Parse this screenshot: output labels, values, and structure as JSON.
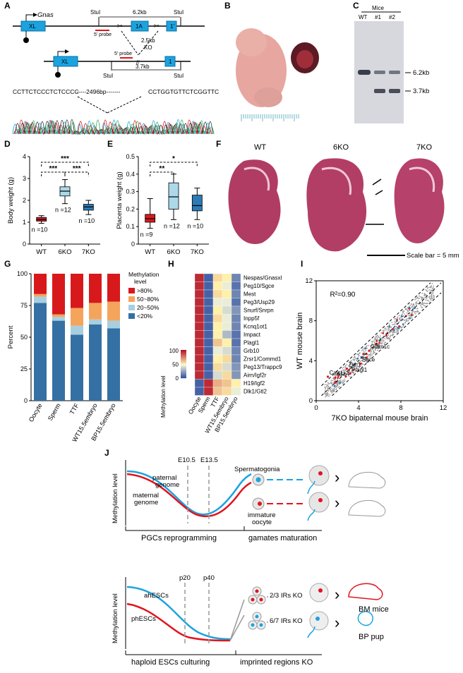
{
  "panel_letters": [
    "A",
    "B",
    "C",
    "D",
    "E",
    "F",
    "G",
    "H",
    "I",
    "J"
  ],
  "panelA": {
    "gene": "Gnas",
    "stul1": "StuI",
    "stul2": "StuI",
    "stul3": "StuI",
    "stul4": "StuI",
    "dist_wt": "6.2kb",
    "dist_ko": "3.7kb",
    "ko_size": "2.5kb",
    "ko_label": "KO",
    "exon_xl": "XL",
    "exon_1a": "1A",
    "exon_1": "1'",
    "exon_1b": "1",
    "probe1": "5' probe",
    "probe2": "5' probe",
    "seq_left": "CCTTCTCCCTCTCCCC",
    "seq_gap": "-----2496bp-------",
    "seq_right": "CCTGGTGTTCTCGGTTC"
  },
  "panelC": {
    "header": "Mice",
    "lanes": [
      "WT",
      "#1",
      "#2"
    ],
    "band_top": "6.2kb",
    "band_bottom": "3.7kb"
  },
  "chart_data": [
    {
      "type": "box",
      "panel": "D",
      "ylabel": "Body weight (g)",
      "ylim": [
        0,
        4
      ],
      "yticks": [
        0,
        1,
        2,
        3,
        4
      ],
      "categories": [
        "WT",
        "6KO",
        "7KO"
      ],
      "colors": [
        "#d7191c",
        "#abd9e9",
        "#2c7bb6"
      ],
      "boxes": [
        {
          "min": 0.95,
          "q1": 1.05,
          "median": 1.12,
          "q3": 1.22,
          "max": 1.3,
          "n": "n =10"
        },
        {
          "min": 1.85,
          "q1": 2.2,
          "median": 2.42,
          "q3": 2.62,
          "max": 2.95,
          "n": "n =12"
        },
        {
          "min": 1.35,
          "q1": 1.55,
          "median": 1.7,
          "q3": 1.82,
          "max": 2.0,
          "n": "n =10"
        }
      ],
      "significance": [
        {
          "pair": [
            "WT",
            "6KO"
          ],
          "label": "***"
        },
        {
          "pair": [
            "6KO",
            "7KO"
          ],
          "label": "***"
        },
        {
          "pair": [
            "WT",
            "7KO"
          ],
          "label": "***"
        }
      ]
    },
    {
      "type": "box",
      "panel": "E",
      "ylabel": "Placenta weight (g)",
      "ylim": [
        0,
        0.5
      ],
      "yticks": [
        0,
        0.1,
        0.2,
        0.3,
        0.4,
        0.5
      ],
      "categories": [
        "WT",
        "6KO",
        "7KO"
      ],
      "colors": [
        "#d7191c",
        "#abd9e9",
        "#2c7bb6"
      ],
      "boxes": [
        {
          "min": 0.09,
          "q1": 0.125,
          "median": 0.145,
          "q3": 0.17,
          "max": 0.26,
          "n": "n =9"
        },
        {
          "min": 0.14,
          "q1": 0.2,
          "median": 0.27,
          "q3": 0.35,
          "max": 0.4,
          "n": "n =12"
        },
        {
          "min": 0.14,
          "q1": 0.19,
          "median": 0.22,
          "q3": 0.28,
          "max": 0.32,
          "n": "n =10"
        }
      ],
      "significance": [
        {
          "pair": [
            "WT",
            "6KO"
          ],
          "label": "**"
        },
        {
          "pair": [
            "WT",
            "7KO"
          ],
          "label": "*"
        }
      ]
    },
    {
      "type": "stacked-bar",
      "panel": "G",
      "ylabel": "Percent",
      "ylim": [
        0,
        100
      ],
      "yticks": [
        0,
        25,
        50,
        75,
        100
      ],
      "categories": [
        "Oocyte",
        "Sperm",
        "TTF",
        "WT15.5embryo",
        "BP15.5embryo"
      ],
      "legend_title": "Methylation level",
      "series": [
        {
          "name": "<20%",
          "color": "#3470a3",
          "values": [
            77,
            63,
            52,
            60,
            57
          ]
        },
        {
          "name": "20~50%",
          "color": "#a7cfe0",
          "values": [
            5,
            3,
            7,
            4,
            6
          ]
        },
        {
          "name": "50~80%",
          "color": "#f4a55b",
          "values": [
            2,
            2,
            14,
            13,
            15
          ]
        },
        {
          "name": ">80%",
          "color": "#d7191c",
          "values": [
            16,
            32,
            27,
            23,
            22
          ]
        }
      ]
    },
    {
      "type": "heatmap",
      "panel": "H",
      "columns": [
        "Oocyte",
        "Sperm",
        "TTF",
        "WT15.5embryo",
        "BP15.5embryo"
      ],
      "rows": [
        "Nespas/Gnasxl",
        "Peg10/Sgce",
        "Mest",
        "Peg3/Usp29",
        "Snurf/Snrpn",
        "Inpp5f",
        "Kcnq1ot1",
        "Impact",
        "Plagl1",
        "Grb10",
        "Zrsr1/Commd1",
        "Peg13/Trappc9",
        "Airn/Igf2r",
        "H19/Igf2",
        "Dlk1/Gtl2"
      ],
      "values": [
        [
          95,
          5,
          55,
          50,
          15
        ],
        [
          95,
          5,
          50,
          45,
          10
        ],
        [
          95,
          5,
          55,
          50,
          15
        ],
        [
          95,
          5,
          45,
          45,
          10
        ],
        [
          95,
          5,
          50,
          40,
          20
        ],
        [
          95,
          5,
          55,
          45,
          15
        ],
        [
          95,
          5,
          50,
          45,
          15
        ],
        [
          95,
          5,
          50,
          30,
          10
        ],
        [
          95,
          5,
          60,
          50,
          10
        ],
        [
          95,
          5,
          45,
          40,
          15
        ],
        [
          95,
          5,
          50,
          55,
          15
        ],
        [
          95,
          5,
          55,
          40,
          20
        ],
        [
          95,
          5,
          40,
          55,
          20
        ],
        [
          5,
          95,
          65,
          60,
          50
        ],
        [
          5,
          95,
          60,
          55,
          45
        ]
      ],
      "scale_label": "Methylation level",
      "scale_ticks": [
        0,
        50,
        100
      ]
    },
    {
      "type": "scatter",
      "panel": "I",
      "xlabel": "7KO bipaternal mouse brain",
      "ylabel": "WT mouse brain",
      "xlim": [
        0,
        12
      ],
      "ylim": [
        0,
        12
      ],
      "ticks": [
        0,
        4,
        8,
        12
      ],
      "annotation": "R²=0.90",
      "labeled_genes": [
        {
          "name": "Calcr",
          "x": 1.1,
          "y": 2.4
        },
        {
          "name": "Asb4",
          "x": 1.8,
          "y": 2.3
        },
        {
          "name": "Zim1",
          "x": 2.9,
          "y": 3.2
        },
        {
          "name": "Cdkn1c",
          "x": 5.0,
          "y": 5.0
        },
        {
          "name": "Sgce",
          "x": 4.2,
          "y": 3.7
        },
        {
          "name": "Plagl1",
          "x": 3.2,
          "y": 2.7
        }
      ]
    }
  ],
  "panelB": {
    "scale_ticks": 28
  },
  "panelF": {
    "labels": [
      "WT",
      "6KO",
      "7KO"
    ],
    "scalebar": "Scale bar = 5 mm"
  },
  "panelJ": {
    "top": {
      "ylabel": "Methylation level",
      "paternal": "paternal genome",
      "paternal_l1": "paternal",
      "paternal_l2": "genome",
      "maternal_l1": "maternal",
      "maternal_l2": "genome",
      "e105": "E10.5",
      "e135": "E13.5",
      "spermatogonia": "Spermatogonia",
      "oocyte_l1": "immature",
      "oocyte_l2": "oocyte",
      "axis_left": "PGCs reprogramming",
      "axis_right": "gamates maturation"
    },
    "bottom": {
      "ylabel": "Methylation level",
      "ah": "ahESCs",
      "ph": "phESCs",
      "p20": "p20",
      "p40": "p40",
      "ko1": "2/3 IRs KO",
      "ko2": "6/7 IRs KO",
      "bm": "BM mice",
      "bp": "BP pup",
      "axis_left": "haploid ESCs culturing",
      "axis_right": "imprinted regions KO"
    },
    "colors": {
      "paternal": "#1ba3e0",
      "maternal": "#e0141e"
    }
  }
}
